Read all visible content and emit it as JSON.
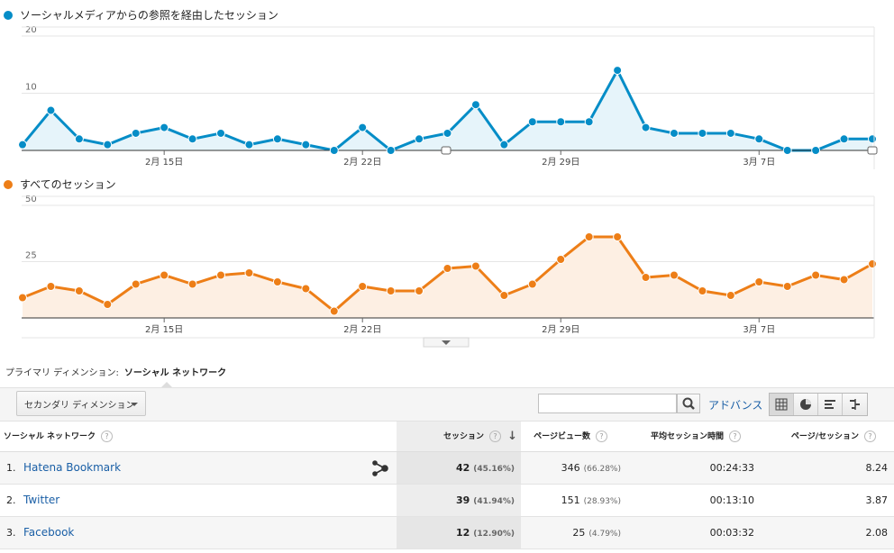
{
  "chart1": {
    "legend": "ソーシャルメディアからの参照を経由したセッション",
    "color": "#058dc7",
    "fill": "#e6f4fa",
    "yticks": [
      "20",
      "10"
    ],
    "xticks": [
      "2月 15日",
      "2月 22日",
      "2月 29日",
      "3月 7日"
    ]
  },
  "chart2": {
    "legend": "すべてのセッション",
    "color": "#ed7e17",
    "fill": "#fdefe3",
    "yticks": [
      "50",
      "25"
    ],
    "xticks": [
      "2月 15日",
      "2月 22日",
      "2月 29日",
      "3月 7日"
    ]
  },
  "chart_data": [
    {
      "type": "area",
      "series": [
        {
          "name": "ソーシャルメディアからの参照を経由したセッション",
          "values": [
            1,
            7,
            2,
            1,
            3,
            4,
            2,
            3,
            1,
            2,
            1,
            0,
            4,
            0,
            2,
            3,
            8,
            1,
            5,
            5,
            5,
            14,
            4,
            3,
            3,
            3,
            2,
            0,
            0,
            2,
            2
          ]
        }
      ],
      "ylim": [
        0,
        20
      ]
    },
    {
      "type": "area",
      "series": [
        {
          "name": "すべてのセッション",
          "values": [
            9,
            14,
            12,
            6,
            15,
            19,
            15,
            19,
            20,
            16,
            13,
            3,
            14,
            12,
            12,
            22,
            23,
            10,
            15,
            26,
            36,
            36,
            18,
            19,
            12,
            10,
            16,
            14,
            19,
            17,
            24
          ]
        }
      ],
      "ylim": [
        0,
        50
      ]
    }
  ],
  "primary_dimension": {
    "label": "プライマリ ディメンション:",
    "value": "ソーシャル ネットワーク"
  },
  "toolbar": {
    "secondary_dimension": "セカンダリ ディメンション",
    "search_value": "",
    "advanced": "アドバンス"
  },
  "table": {
    "headers": {
      "network": "ソーシャル ネットワーク",
      "sessions": "セッション",
      "pageviews": "ページビュー数",
      "avg_duration": "平均セッション時間",
      "pages_per_session": "ページ/セッション"
    },
    "help": "?",
    "sort_arrow": "↓",
    "rows": [
      {
        "idx": "1.",
        "name": "Hatena Bookmark",
        "sessions": "42",
        "sessions_pct": "(45.16%)",
        "pageviews": "346",
        "pageviews_pct": "(66.28%)",
        "duration": "00:24:33",
        "pps": "8.24"
      },
      {
        "idx": "2.",
        "name": "Twitter",
        "sessions": "39",
        "sessions_pct": "(41.94%)",
        "pageviews": "151",
        "pageviews_pct": "(28.93%)",
        "duration": "00:13:10",
        "pps": "3.87"
      },
      {
        "idx": "3.",
        "name": "Facebook",
        "sessions": "12",
        "sessions_pct": "(12.90%)",
        "pageviews": "25",
        "pageviews_pct": "(4.79%)",
        "duration": "00:03:32",
        "pps": "2.08"
      }
    ]
  }
}
